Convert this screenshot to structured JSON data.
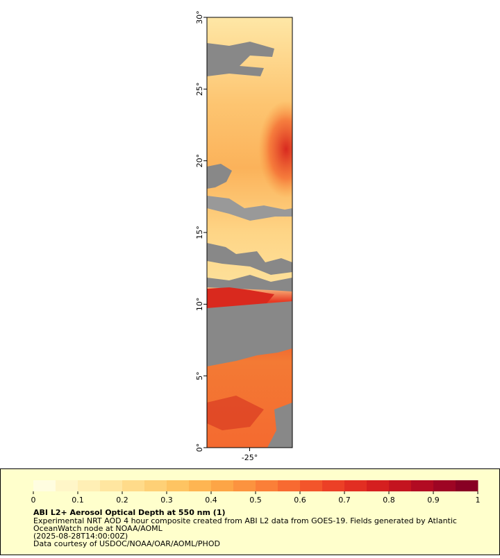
{
  "map": {
    "xlim": [
      -28,
      -22
    ],
    "ylim": [
      0,
      30
    ],
    "xticks": [
      {
        "value": -25,
        "label": "-25°"
      }
    ],
    "yticks": [
      {
        "value": 0,
        "label": "0°"
      },
      {
        "value": 5,
        "label": "5°"
      },
      {
        "value": 10,
        "label": "10°"
      },
      {
        "value": 15,
        "label": "15°"
      },
      {
        "value": 20,
        "label": "20°"
      },
      {
        "value": 25,
        "label": "25°"
      },
      {
        "value": 30,
        "label": "30°"
      }
    ]
  },
  "colorbar": {
    "range": [
      0,
      1
    ],
    "ticks": [
      0,
      0.1,
      0.2,
      0.3,
      0.4,
      0.5,
      0.6,
      0.7,
      0.8,
      0.9,
      1
    ],
    "palette": [
      "#fffde0",
      "#fff6c8",
      "#ffefb5",
      "#ffe6a0",
      "#ffdb8a",
      "#fed076",
      "#fec462",
      "#feb552",
      "#fda546",
      "#fc933f",
      "#fb7f38",
      "#f86a31",
      "#f3552b",
      "#ec4026",
      "#e22e22",
      "#d51f1f",
      "#c4141f",
      "#b20b22",
      "#9e0524",
      "#880024"
    ]
  },
  "legend": {
    "title": "ABI L2+ Aerosol Optical Depth at 550 nm (1)",
    "lines": [
      "Experimental NRT AOD 4 hour composite created from ABI L2 data from GOES-19. Fields generated by Atlantic",
      "OceanWatch node at NOAA/AOML",
      "(2025-08-28T14:00:00Z)",
      "Data courtesy of USDOC/NOAA/OAR/AOML/PHOD"
    ]
  }
}
